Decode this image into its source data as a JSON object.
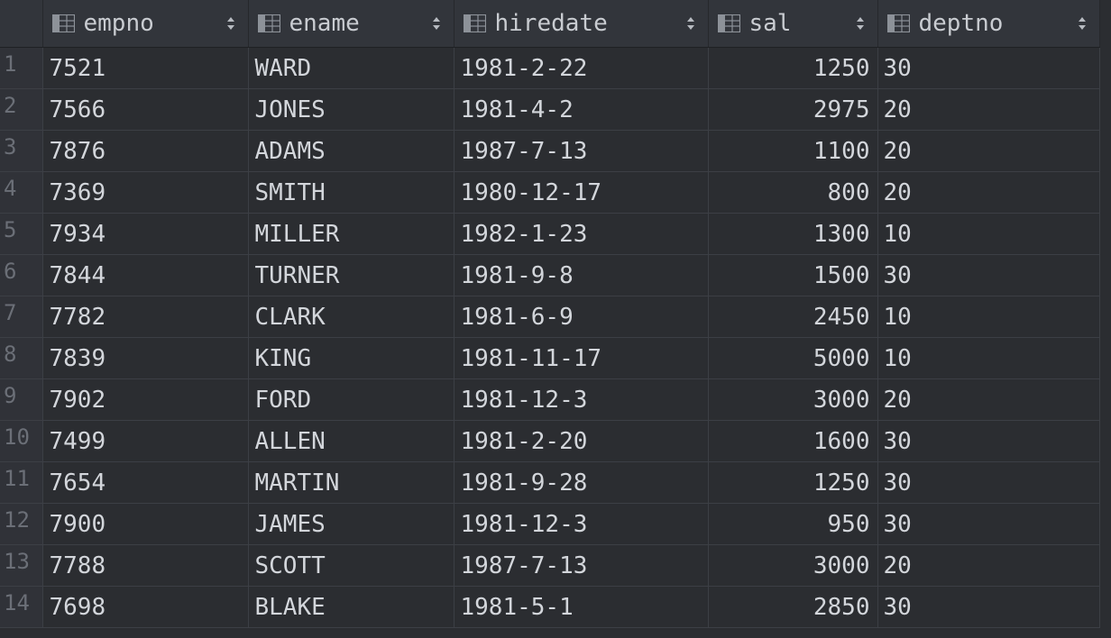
{
  "columns": [
    {
      "label": "empno",
      "icon": "column-icon",
      "sort_icon": "sort-arrows-icon"
    },
    {
      "label": "ename",
      "icon": "column-icon",
      "sort_icon": "sort-arrows-icon"
    },
    {
      "label": "hiredate",
      "icon": "column-icon",
      "sort_icon": "sort-arrows-icon"
    },
    {
      "label": "sal",
      "icon": "column-icon",
      "sort_icon": "sort-arrows-icon"
    },
    {
      "label": "deptno",
      "icon": "column-icon",
      "sort_icon": "sort-arrows-icon"
    }
  ],
  "rows": [
    {
      "n": "1",
      "empno": "7521",
      "ename": "WARD",
      "hiredate": "1981-2-22",
      "sal": "1250",
      "deptno": "30"
    },
    {
      "n": "2",
      "empno": "7566",
      "ename": "JONES",
      "hiredate": "1981-4-2",
      "sal": "2975",
      "deptno": "20"
    },
    {
      "n": "3",
      "empno": "7876",
      "ename": "ADAMS",
      "hiredate": "1987-7-13",
      "sal": "1100",
      "deptno": "20"
    },
    {
      "n": "4",
      "empno": "7369",
      "ename": "SMITH",
      "hiredate": "1980-12-17",
      "sal": "800",
      "deptno": "20"
    },
    {
      "n": "5",
      "empno": "7934",
      "ename": "MILLER",
      "hiredate": "1982-1-23",
      "sal": "1300",
      "deptno": "10"
    },
    {
      "n": "6",
      "empno": "7844",
      "ename": "TURNER",
      "hiredate": "1981-9-8",
      "sal": "1500",
      "deptno": "30"
    },
    {
      "n": "7",
      "empno": "7782",
      "ename": "CLARK",
      "hiredate": "1981-6-9",
      "sal": "2450",
      "deptno": "10"
    },
    {
      "n": "8",
      "empno": "7839",
      "ename": "KING",
      "hiredate": "1981-11-17",
      "sal": "5000",
      "deptno": "10"
    },
    {
      "n": "9",
      "empno": "7902",
      "ename": "FORD",
      "hiredate": "1981-12-3",
      "sal": "3000",
      "deptno": "20"
    },
    {
      "n": "10",
      "empno": "7499",
      "ename": "ALLEN",
      "hiredate": "1981-2-20",
      "sal": "1600",
      "deptno": "30"
    },
    {
      "n": "11",
      "empno": "7654",
      "ename": "MARTIN",
      "hiredate": "1981-9-28",
      "sal": "1250",
      "deptno": "30"
    },
    {
      "n": "12",
      "empno": "7900",
      "ename": "JAMES",
      "hiredate": "1981-12-3",
      "sal": "950",
      "deptno": "30"
    },
    {
      "n": "13",
      "empno": "7788",
      "ename": "SCOTT",
      "hiredate": "1987-7-13",
      "sal": "3000",
      "deptno": "20"
    },
    {
      "n": "14",
      "empno": "7698",
      "ename": "BLAKE",
      "hiredate": "1981-5-1",
      "sal": "2850",
      "deptno": "30"
    }
  ],
  "colors": {
    "background": "#2b2d31",
    "header_background": "#32353b",
    "text": "#d3d6db",
    "row_number_text": "#6b6f77",
    "grid_line": "#3c3f45"
  }
}
